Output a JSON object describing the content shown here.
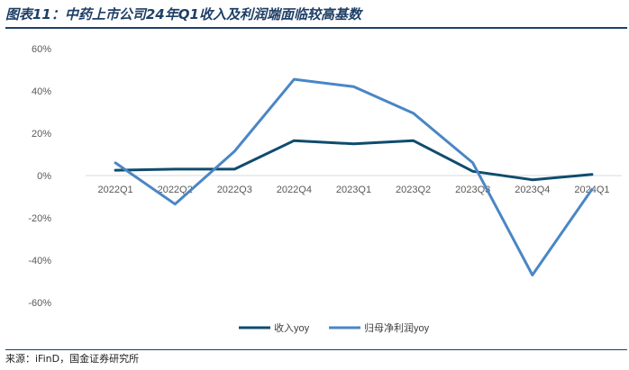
{
  "figure": {
    "title": "图表11：中药上市公司24年Q1收入及利润端面临较高基数",
    "source": "来源：iFinD，国金证券研究所"
  },
  "chart_data": {
    "type": "line",
    "categories": [
      "2022Q1",
      "2022Q2",
      "2022Q3",
      "2022Q4",
      "2023Q1",
      "2023Q2",
      "2023Q3",
      "2023Q4",
      "2024Q1"
    ],
    "series": [
      {
        "name": "收入yoy",
        "color": "#0f4c6e",
        "values": [
          2.5,
          3.0,
          3.0,
          16.5,
          15.0,
          16.5,
          2.0,
          -2.0,
          0.5
        ]
      },
      {
        "name": "归母净利润yoy",
        "color": "#4a86c5",
        "values": [
          6.0,
          -13.5,
          11.5,
          45.5,
          42.0,
          29.5,
          6.0,
          -47.0,
          -6.5
        ]
      }
    ],
    "yticks": [
      "60%",
      "40%",
      "20%",
      "0%",
      "-20%",
      "-40%",
      "-60%"
    ],
    "ylim": [
      -60,
      60
    ],
    "legend_position": "bottom",
    "grid": false
  }
}
